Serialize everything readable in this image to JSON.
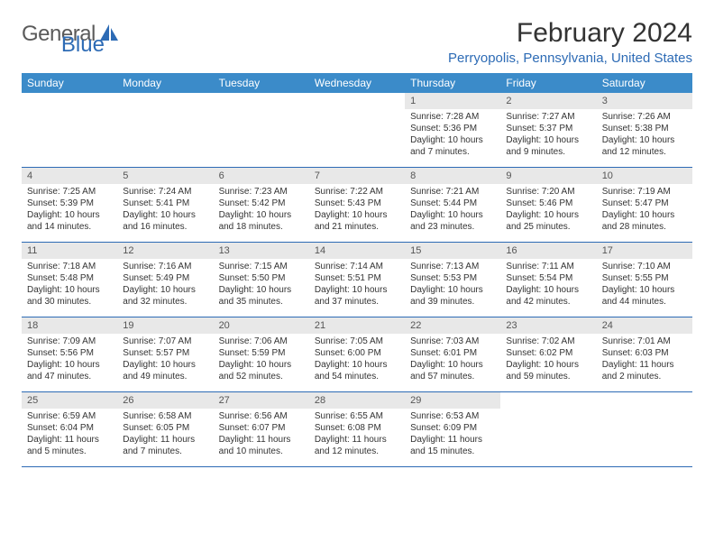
{
  "logo": {
    "general": "General",
    "blue": "Blue"
  },
  "title": "February 2024",
  "location": "Perryopolis, Pennsylvania, United States",
  "weekdays": [
    "Sunday",
    "Monday",
    "Tuesday",
    "Wednesday",
    "Thursday",
    "Friday",
    "Saturday"
  ],
  "colors": {
    "header_bg": "#3b8bc9",
    "accent": "#2d6bb5",
    "row_band": "#e8e8e8"
  },
  "weeks": [
    [
      {
        "n": "",
        "sr": "",
        "ss": "",
        "dl": ""
      },
      {
        "n": "",
        "sr": "",
        "ss": "",
        "dl": ""
      },
      {
        "n": "",
        "sr": "",
        "ss": "",
        "dl": ""
      },
      {
        "n": "",
        "sr": "",
        "ss": "",
        "dl": ""
      },
      {
        "n": "1",
        "sr": "Sunrise: 7:28 AM",
        "ss": "Sunset: 5:36 PM",
        "dl": "Daylight: 10 hours and 7 minutes."
      },
      {
        "n": "2",
        "sr": "Sunrise: 7:27 AM",
        "ss": "Sunset: 5:37 PM",
        "dl": "Daylight: 10 hours and 9 minutes."
      },
      {
        "n": "3",
        "sr": "Sunrise: 7:26 AM",
        "ss": "Sunset: 5:38 PM",
        "dl": "Daylight: 10 hours and 12 minutes."
      }
    ],
    [
      {
        "n": "4",
        "sr": "Sunrise: 7:25 AM",
        "ss": "Sunset: 5:39 PM",
        "dl": "Daylight: 10 hours and 14 minutes."
      },
      {
        "n": "5",
        "sr": "Sunrise: 7:24 AM",
        "ss": "Sunset: 5:41 PM",
        "dl": "Daylight: 10 hours and 16 minutes."
      },
      {
        "n": "6",
        "sr": "Sunrise: 7:23 AM",
        "ss": "Sunset: 5:42 PM",
        "dl": "Daylight: 10 hours and 18 minutes."
      },
      {
        "n": "7",
        "sr": "Sunrise: 7:22 AM",
        "ss": "Sunset: 5:43 PM",
        "dl": "Daylight: 10 hours and 21 minutes."
      },
      {
        "n": "8",
        "sr": "Sunrise: 7:21 AM",
        "ss": "Sunset: 5:44 PM",
        "dl": "Daylight: 10 hours and 23 minutes."
      },
      {
        "n": "9",
        "sr": "Sunrise: 7:20 AM",
        "ss": "Sunset: 5:46 PM",
        "dl": "Daylight: 10 hours and 25 minutes."
      },
      {
        "n": "10",
        "sr": "Sunrise: 7:19 AM",
        "ss": "Sunset: 5:47 PM",
        "dl": "Daylight: 10 hours and 28 minutes."
      }
    ],
    [
      {
        "n": "11",
        "sr": "Sunrise: 7:18 AM",
        "ss": "Sunset: 5:48 PM",
        "dl": "Daylight: 10 hours and 30 minutes."
      },
      {
        "n": "12",
        "sr": "Sunrise: 7:16 AM",
        "ss": "Sunset: 5:49 PM",
        "dl": "Daylight: 10 hours and 32 minutes."
      },
      {
        "n": "13",
        "sr": "Sunrise: 7:15 AM",
        "ss": "Sunset: 5:50 PM",
        "dl": "Daylight: 10 hours and 35 minutes."
      },
      {
        "n": "14",
        "sr": "Sunrise: 7:14 AM",
        "ss": "Sunset: 5:51 PM",
        "dl": "Daylight: 10 hours and 37 minutes."
      },
      {
        "n": "15",
        "sr": "Sunrise: 7:13 AM",
        "ss": "Sunset: 5:53 PM",
        "dl": "Daylight: 10 hours and 39 minutes."
      },
      {
        "n": "16",
        "sr": "Sunrise: 7:11 AM",
        "ss": "Sunset: 5:54 PM",
        "dl": "Daylight: 10 hours and 42 minutes."
      },
      {
        "n": "17",
        "sr": "Sunrise: 7:10 AM",
        "ss": "Sunset: 5:55 PM",
        "dl": "Daylight: 10 hours and 44 minutes."
      }
    ],
    [
      {
        "n": "18",
        "sr": "Sunrise: 7:09 AM",
        "ss": "Sunset: 5:56 PM",
        "dl": "Daylight: 10 hours and 47 minutes."
      },
      {
        "n": "19",
        "sr": "Sunrise: 7:07 AM",
        "ss": "Sunset: 5:57 PM",
        "dl": "Daylight: 10 hours and 49 minutes."
      },
      {
        "n": "20",
        "sr": "Sunrise: 7:06 AM",
        "ss": "Sunset: 5:59 PM",
        "dl": "Daylight: 10 hours and 52 minutes."
      },
      {
        "n": "21",
        "sr": "Sunrise: 7:05 AM",
        "ss": "Sunset: 6:00 PM",
        "dl": "Daylight: 10 hours and 54 minutes."
      },
      {
        "n": "22",
        "sr": "Sunrise: 7:03 AM",
        "ss": "Sunset: 6:01 PM",
        "dl": "Daylight: 10 hours and 57 minutes."
      },
      {
        "n": "23",
        "sr": "Sunrise: 7:02 AM",
        "ss": "Sunset: 6:02 PM",
        "dl": "Daylight: 10 hours and 59 minutes."
      },
      {
        "n": "24",
        "sr": "Sunrise: 7:01 AM",
        "ss": "Sunset: 6:03 PM",
        "dl": "Daylight: 11 hours and 2 minutes."
      }
    ],
    [
      {
        "n": "25",
        "sr": "Sunrise: 6:59 AM",
        "ss": "Sunset: 6:04 PM",
        "dl": "Daylight: 11 hours and 5 minutes."
      },
      {
        "n": "26",
        "sr": "Sunrise: 6:58 AM",
        "ss": "Sunset: 6:05 PM",
        "dl": "Daylight: 11 hours and 7 minutes."
      },
      {
        "n": "27",
        "sr": "Sunrise: 6:56 AM",
        "ss": "Sunset: 6:07 PM",
        "dl": "Daylight: 11 hours and 10 minutes."
      },
      {
        "n": "28",
        "sr": "Sunrise: 6:55 AM",
        "ss": "Sunset: 6:08 PM",
        "dl": "Daylight: 11 hours and 12 minutes."
      },
      {
        "n": "29",
        "sr": "Sunrise: 6:53 AM",
        "ss": "Sunset: 6:09 PM",
        "dl": "Daylight: 11 hours and 15 minutes."
      },
      {
        "n": "",
        "sr": "",
        "ss": "",
        "dl": ""
      },
      {
        "n": "",
        "sr": "",
        "ss": "",
        "dl": ""
      }
    ]
  ]
}
